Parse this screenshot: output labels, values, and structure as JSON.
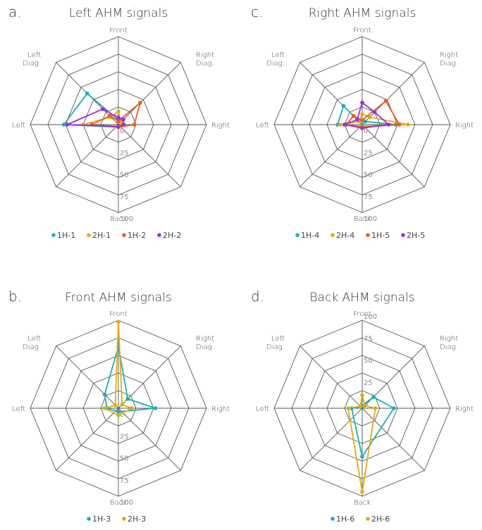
{
  "axes": [
    "Front",
    "Right Diag.",
    "Right",
    "Back",
    "Left",
    "Left Diag."
  ],
  "ticks": [
    "0",
    "25",
    "50",
    "75",
    "100"
  ],
  "colors": {
    "teal": "#19b0b6",
    "gold": "#e6aa0e",
    "orange": "#ee5a1c",
    "purple": "#9b2ee0",
    "grid": "#555555"
  },
  "chart_data": [
    {
      "type": "radar",
      "letter": "a.",
      "title": "Left AHM signals",
      "axes": [
        "Front",
        "Right Diag.",
        "Right",
        "Back",
        "Left",
        "Left Diag."
      ],
      "rlim": [
        0,
        100
      ],
      "tick_position": "back",
      "series": [
        {
          "name": "1H-1",
          "color": "#19b0b6",
          "values": [
            5,
            2,
            5,
            3,
            62,
            50
          ]
        },
        {
          "name": "2H-1",
          "color": "#e6aa0e",
          "values": [
            15,
            4,
            3,
            2,
            40,
            12
          ]
        },
        {
          "name": "1H-2",
          "color": "#ee5a1c",
          "values": [
            4,
            35,
            18,
            3,
            30,
            14
          ]
        },
        {
          "name": "2H-2",
          "color": "#9b2ee0",
          "values": [
            8,
            8,
            6,
            2,
            58,
            25
          ]
        }
      ]
    },
    {
      "type": "radar",
      "letter": "c.",
      "title": "Right AHM signals",
      "axes": [
        "Front",
        "Right Diag.",
        "Right",
        "Back",
        "Left",
        "Left Diag."
      ],
      "rlim": [
        0,
        100
      ],
      "tick_position": "back",
      "series": [
        {
          "name": "1H-4",
          "color": "#19b0b6",
          "values": [
            0,
            5,
            38,
            2,
            28,
            30
          ]
        },
        {
          "name": "2H-4",
          "color": "#e6aa0e",
          "values": [
            12,
            12,
            52,
            2,
            25,
            5
          ]
        },
        {
          "name": "1H-5",
          "color": "#ee5a1c",
          "values": [
            5,
            38,
            42,
            3,
            18,
            14
          ]
        },
        {
          "name": "2H-5",
          "color": "#9b2ee0",
          "values": [
            25,
            20,
            30,
            4,
            20,
            8
          ]
        }
      ]
    },
    {
      "type": "radar",
      "letter": "b.",
      "title": "Front AHM signals",
      "axes": [
        "Front",
        "Right Diag.",
        "Right",
        "Back",
        "Left",
        "Left Diag."
      ],
      "rlim": [
        0,
        100
      ],
      "tick_position": "back",
      "series": [
        {
          "name": "1H-3",
          "color": "#19b0b6",
          "values": [
            70,
            15,
            42,
            4,
            13,
            22
          ]
        },
        {
          "name": "2H-3",
          "color": "#e6aa0e",
          "values": [
            98,
            6,
            15,
            8,
            16,
            5
          ]
        }
      ]
    },
    {
      "type": "radar",
      "letter": "d.",
      "title": "Back AHM signals",
      "axes": [
        "Front",
        "Right Diag.",
        "Right",
        "Back",
        "Left",
        "Left Diag."
      ],
      "rlim": [
        0,
        100
      ],
      "tick_position": "front",
      "series": [
        {
          "name": "1H-6",
          "color": "#19b0b6",
          "values": [
            3,
            18,
            36,
            55,
            12,
            2
          ]
        },
        {
          "name": "2H-6",
          "color": "#e6aa0e",
          "values": [
            15,
            4,
            15,
            95,
            16,
            3
          ]
        }
      ]
    }
  ]
}
